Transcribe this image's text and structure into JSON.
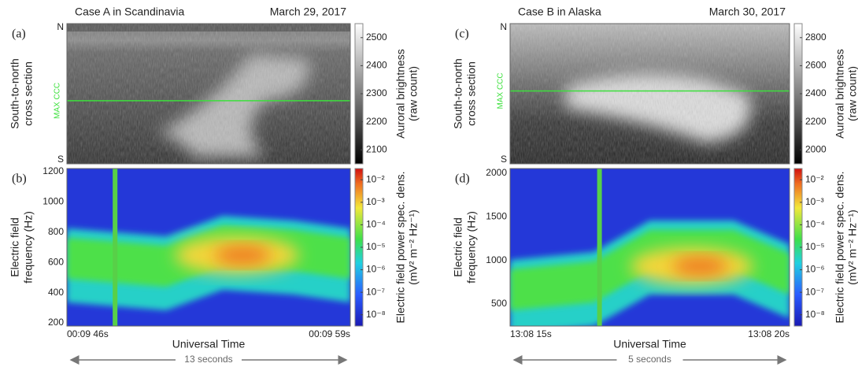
{
  "panels": [
    {
      "label": "(a)",
      "title": "Case A in Scandinavia",
      "date": "March 29, 2017",
      "north": "N",
      "south": "S",
      "ylabel": [
        "South-to-north",
        "cross section"
      ],
      "line_label": "MAX CCC",
      "cbar_title": [
        "Auroral brightness",
        "(raw count)"
      ],
      "cbar_ticks": [
        "2500",
        "2400",
        "2300",
        "2200",
        "2100"
      ]
    },
    {
      "label": "(b)",
      "ylabel": [
        "Electric field",
        "frequency (Hz)"
      ],
      "yticks": [
        "1200",
        "1000",
        "800",
        "600",
        "400",
        "200"
      ],
      "cbar_title": [
        "Electric field power spec. dens.",
        "(mV² m⁻² Hz⁻¹)"
      ],
      "cbar_ticks": [
        "10⁻²",
        "10⁻³",
        "10⁻⁴",
        "10⁻⁵",
        "10⁻⁶",
        "10⁻⁷",
        "10⁻⁸"
      ],
      "xstart": "00:09 46s",
      "xend": "00:09 59s",
      "xlabel": "Universal Time",
      "span": "13 seconds"
    },
    {
      "label": "(c)",
      "title": "Case B in Alaska",
      "date": "March 30, 2017",
      "north": "N",
      "south": "S",
      "ylabel": [
        "South-to-north",
        "cross section"
      ],
      "line_label": "MAX CCC",
      "cbar_title": [
        "Auroral brightness",
        "(raw count)"
      ],
      "cbar_ticks": [
        "2800",
        "2600",
        "2400",
        "2200",
        "2000"
      ]
    },
    {
      "label": "(d)",
      "ylabel": [
        "Electric field",
        "frequency (Hz)"
      ],
      "yticks": [
        "2000",
        "1500",
        "1000",
        "500"
      ],
      "cbar_title": [
        "Electric field power spec. dens.",
        "(mV² m⁻² Hz⁻¹)"
      ],
      "cbar_ticks": [
        "10⁻²",
        "10⁻³",
        "10⁻⁴",
        "10⁻⁵",
        "10⁻⁶",
        "10⁻⁷",
        "10⁻⁸"
      ],
      "xstart": "13:08 15s",
      "xend": "13:08 20s",
      "xlabel": "Universal Time",
      "span": "5 seconds"
    }
  ]
}
